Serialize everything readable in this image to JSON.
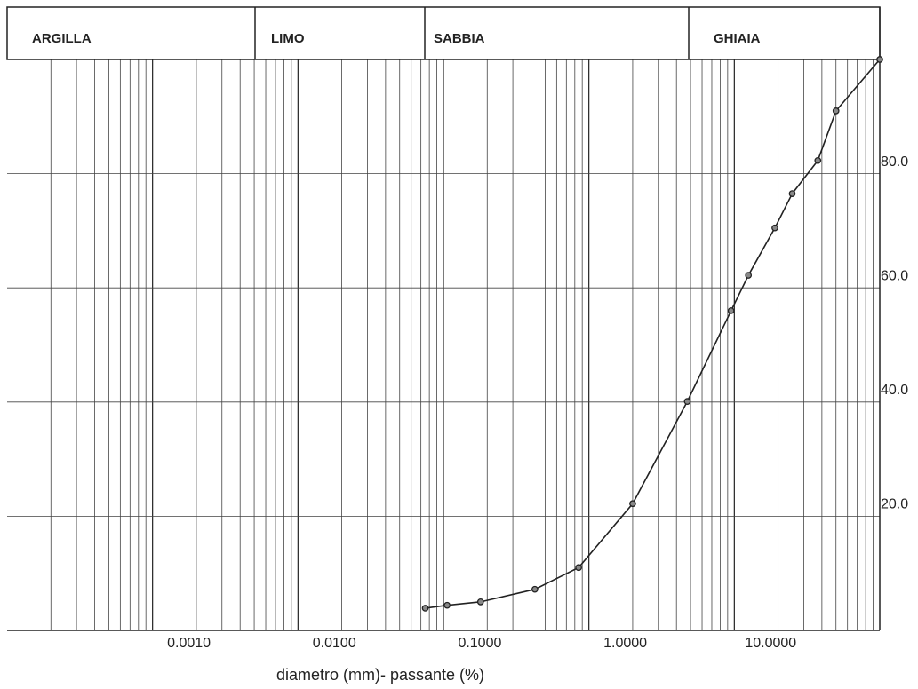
{
  "chart_data": {
    "type": "line",
    "zones": [
      "ARGILLA",
      "LIMO",
      "SABBIA",
      "GHIAIA"
    ],
    "x_label": "diametro (mm)- passante (%)",
    "x": [
      0.075,
      0.106,
      0.18,
      0.425,
      0.85,
      2,
      4.75,
      9.5,
      12.5,
      19,
      25,
      37.5,
      50,
      100
    ],
    "series": [
      {
        "name": "passante",
        "color": "#222222",
        "values": [
          3.9,
          4.4,
          5.0,
          7.2,
          11.0,
          22.2,
          40.1,
          56.0,
          62.2,
          70.5,
          76.5,
          82.3,
          91.0,
          100
        ]
      }
    ],
    "xlim": [
      0.0001,
      100
    ],
    "xscale": "log",
    "xticks": [
      {
        "value": 0.001,
        "label": "0.0010"
      },
      {
        "value": 0.01,
        "label": "0.0100"
      },
      {
        "value": 0.1,
        "label": "0.1000"
      },
      {
        "value": 1,
        "label": "1.0000"
      },
      {
        "value": 10,
        "label": "10.0000"
      }
    ],
    "ylim": [
      0,
      100
    ],
    "yticks": [
      {
        "value": 20,
        "label": "20.0"
      },
      {
        "value": 40,
        "label": "40.0"
      },
      {
        "value": 60,
        "label": "60.0"
      },
      {
        "value": 80,
        "label": "80.0"
      }
    ],
    "grid": true
  }
}
